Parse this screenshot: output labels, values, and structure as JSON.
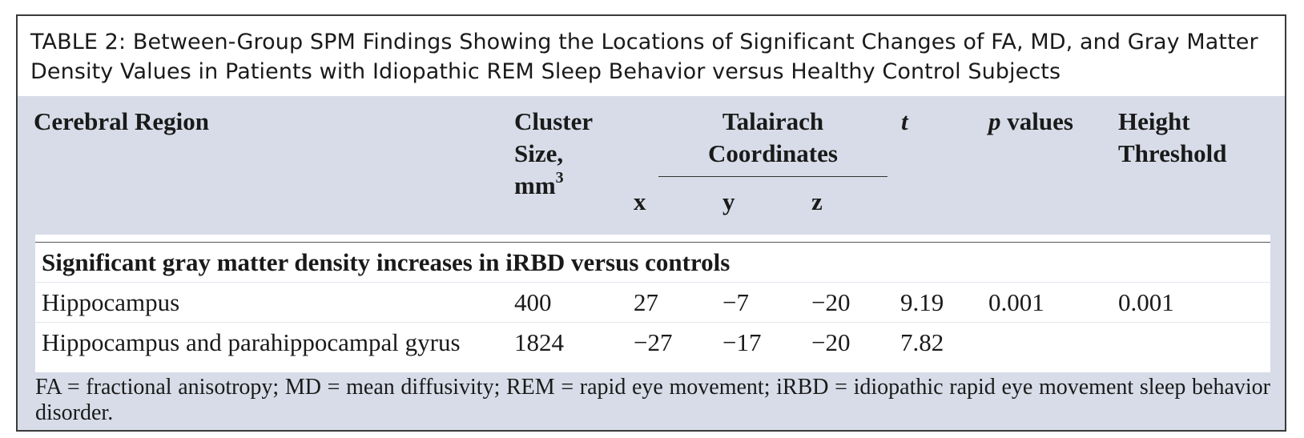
{
  "caption": "TABLE 2: Between-Group SPM Findings Showing the Locations of Significant Changes of FA, MD, and Gray Matter Density Values in Patients with Idiopathic REM Sleep Behavior versus Healthy Control Subjects",
  "header": {
    "region": "Cerebral Region",
    "cluster_line1": "Cluster",
    "cluster_line2": "Size,",
    "cluster_line3": "mm",
    "cluster_sup": "3",
    "talairach_line1": "Talairach",
    "talairach_line2": "Coordinates",
    "x": "x",
    "y": "y",
    "z": "z",
    "t": "t",
    "p_italic": "p",
    "p_rest": " values",
    "height_line1": "Height",
    "height_line2": "Threshold"
  },
  "section_title": "Significant gray matter density increases in iRBD versus controls",
  "rows": [
    {
      "region": "Hippocampus",
      "cluster": "400",
      "x": "27",
      "y": "−7",
      "z": "−20",
      "t": "9.19",
      "p": "0.001",
      "height": "0.001"
    },
    {
      "region": "Hippocampus and parahippocampal gyrus",
      "cluster": "1824",
      "x": "−27",
      "y": "−17",
      "z": "−20",
      "t": "7.82",
      "p": "",
      "height": ""
    }
  ],
  "footnote": "FA = fractional anisotropy; MD = mean diffusivity; REM = rapid eye movement; iRBD = idiopathic rapid eye movement sleep behavior disorder."
}
